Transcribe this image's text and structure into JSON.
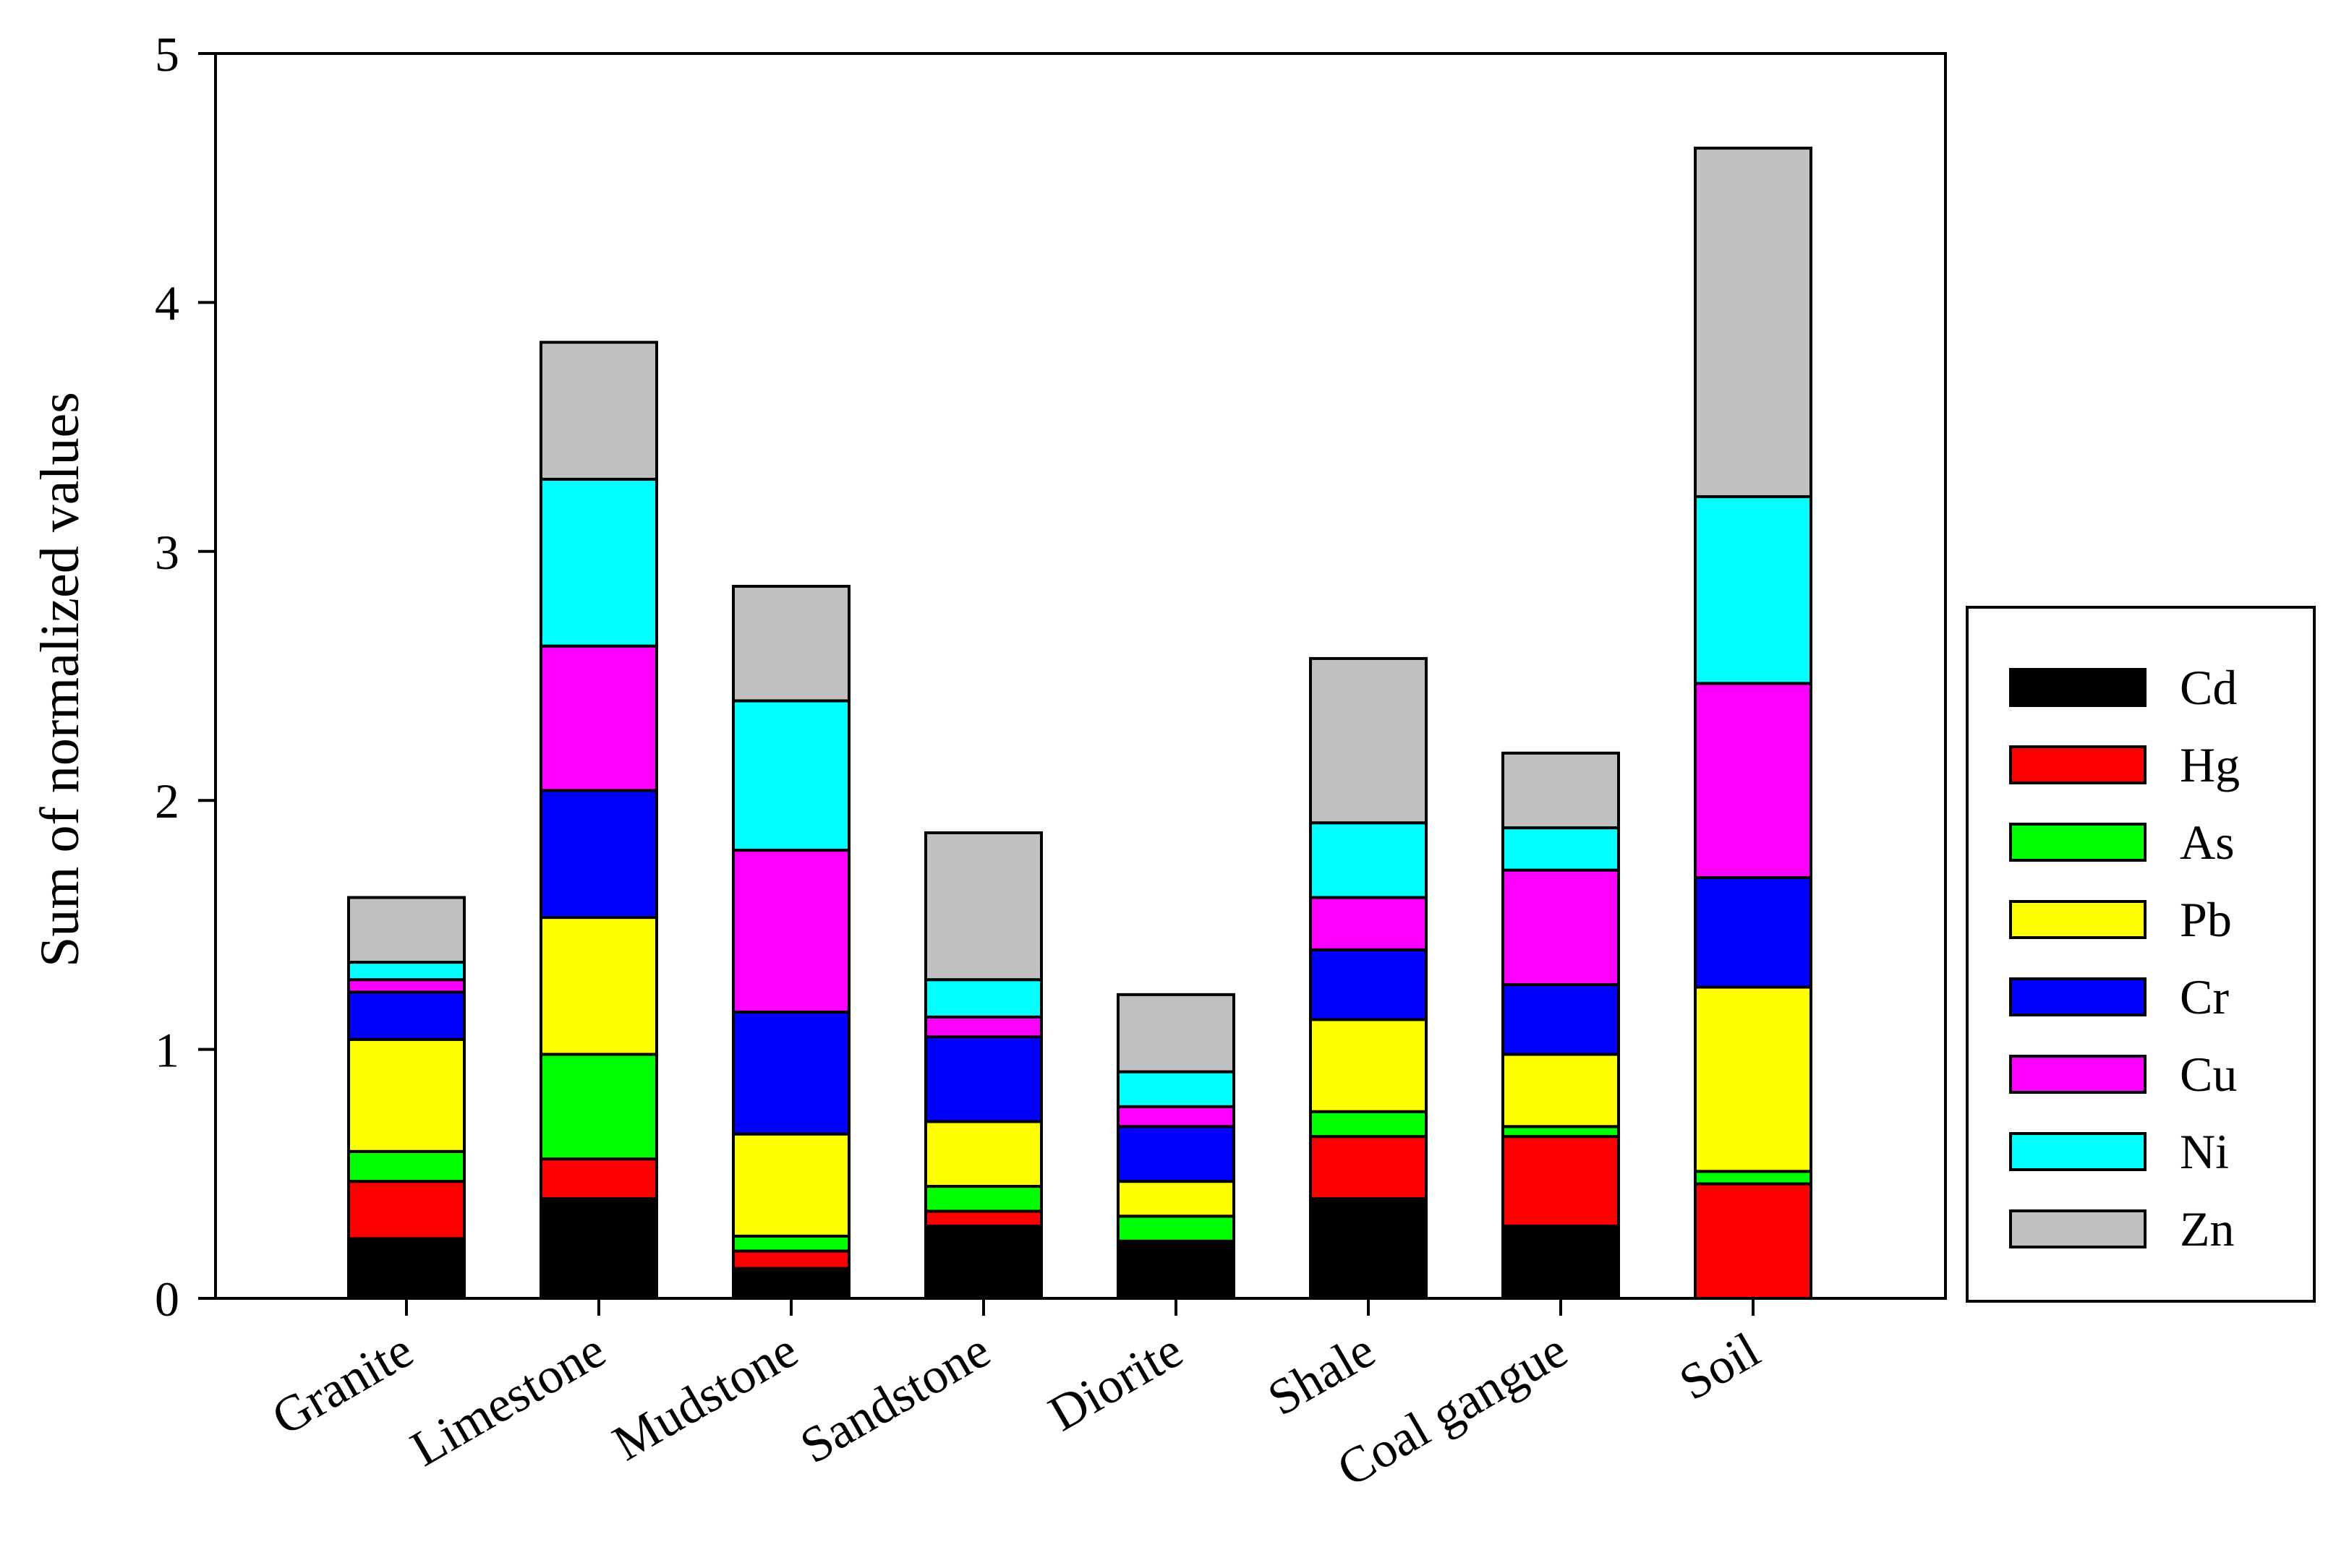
{
  "chart_data": {
    "type": "bar",
    "stacked": true,
    "title": "",
    "xlabel": "",
    "ylabel": "Sum of normalized values",
    "ylim": [
      0,
      5
    ],
    "yticks": [
      0,
      1,
      2,
      3,
      4,
      5
    ],
    "grid": false,
    "legend_position": "right",
    "categories": [
      "Granite",
      "Limestone",
      "Mudstone",
      "Sandstone",
      "Diorite",
      "Shale",
      "Coal gangue",
      "Soil"
    ],
    "series": [
      {
        "name": "Cd",
        "color": "#000000",
        "values": [
          0.24,
          0.4,
          0.12,
          0.29,
          0.23,
          0.4,
          0.29,
          0.0
        ]
      },
      {
        "name": "Hg",
        "color": "#ff0000",
        "values": [
          0.23,
          0.16,
          0.07,
          0.06,
          0.0,
          0.25,
          0.36,
          0.46
        ]
      },
      {
        "name": "As",
        "color": "#00ff00",
        "values": [
          0.12,
          0.42,
          0.06,
          0.1,
          0.1,
          0.1,
          0.04,
          0.05
        ]
      },
      {
        "name": "Pb",
        "color": "#ffff00",
        "values": [
          0.45,
          0.55,
          0.41,
          0.26,
          0.14,
          0.37,
          0.29,
          0.74
        ]
      },
      {
        "name": "Cr",
        "color": "#0000ff",
        "values": [
          0.19,
          0.51,
          0.49,
          0.34,
          0.22,
          0.28,
          0.28,
          0.44
        ]
      },
      {
        "name": "Cu",
        "color": "#ff00ff",
        "values": [
          0.05,
          0.58,
          0.65,
          0.08,
          0.08,
          0.21,
          0.46,
          0.78
        ]
      },
      {
        "name": "Ni",
        "color": "#00ffff",
        "values": [
          0.07,
          0.67,
          0.6,
          0.15,
          0.14,
          0.3,
          0.17,
          0.75
        ]
      },
      {
        "name": "Zn",
        "color": "#c0c0c0",
        "values": [
          0.26,
          0.55,
          0.46,
          0.59,
          0.31,
          0.66,
          0.3,
          1.4
        ]
      }
    ]
  }
}
